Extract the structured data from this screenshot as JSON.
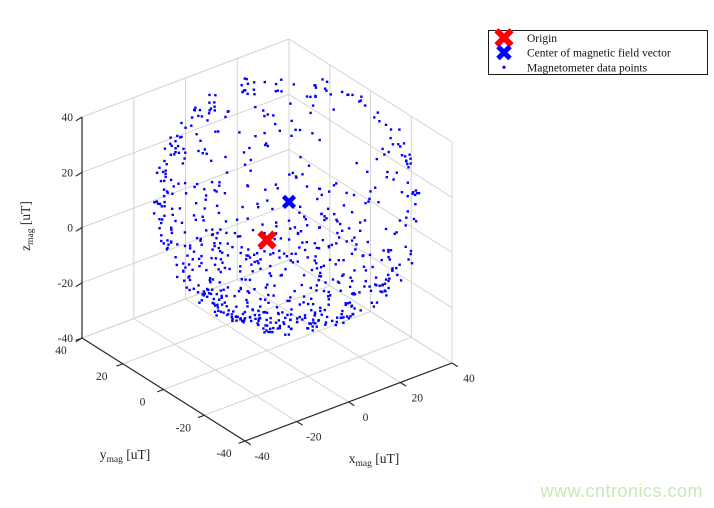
{
  "watermark": {
    "text": "www.cntronics.com",
    "color": "#c8e8b4"
  },
  "legend": {
    "border_color": "#1a1a1a",
    "background": "#ffffff",
    "items": [
      {
        "label": "Origin",
        "marker": "x-marker",
        "color": "#ff0000"
      },
      {
        "label": "Center of magnetic field vector",
        "marker": "x-marker",
        "color": "#0000ff"
      },
      {
        "label": "Magnetometer data points",
        "marker": "dot-marker",
        "color": "#0000ff"
      }
    ]
  },
  "chart_data": {
    "type": "scatter",
    "projection": "3d",
    "title": "",
    "grid": true,
    "colors": {
      "grid": "#d4d4d4",
      "axis": "#262626",
      "points": "#0000ff",
      "origin_marker": "#ff0000",
      "center_marker": "#0000ff"
    },
    "axes": {
      "x": {
        "label": "x_mag [uT]",
        "label_parts": {
          "base": "x",
          "sub": "mag",
          "unit": " [uT]"
        },
        "range": [
          -40,
          40
        ],
        "ticks": [
          -40,
          -20,
          0,
          20,
          40
        ]
      },
      "y": {
        "label": "y_mag [uT]",
        "label_parts": {
          "base": "y",
          "sub": "mag",
          "unit": " [uT]"
        },
        "range": [
          -40,
          40
        ],
        "ticks": [
          -40,
          -20,
          0,
          20,
          40
        ]
      },
      "z": {
        "label": "z_mag [uT]",
        "label_parts": {
          "base": "z",
          "sub": "mag",
          "unit": " [uT]"
        },
        "range": [
          -40,
          40
        ],
        "ticks": [
          -40,
          -20,
          0,
          20,
          40
        ]
      }
    },
    "series": [
      {
        "name": "Origin",
        "type": "marker",
        "marker": "x",
        "color": "#ff0000",
        "points": [
          [
            0,
            0,
            0
          ]
        ]
      },
      {
        "name": "Center of magnetic field vector",
        "type": "marker",
        "marker": "x",
        "color": "#0000ff",
        "points": [
          [
            8.5,
            0,
            10.8
          ]
        ]
      },
      {
        "name": "Magnetometer data points",
        "type": "point-cloud",
        "marker": ".",
        "color": "#0000ff",
        "generator": {
          "distribution": "sphere-surface",
          "center": [
            8.5,
            0,
            10.8
          ],
          "radius": 40,
          "radius_jitter": 2,
          "count_uniform": 740,
          "count_bottom_cap": 170,
          "bottom_cap_cos_range": [
            -1,
            -0.55
          ],
          "clip": {
            "x": [
              -40,
              40
            ],
            "y": [
              -40,
              40
            ],
            "z": [
              -40,
              40
            ]
          },
          "seed": 7
        }
      }
    ]
  }
}
